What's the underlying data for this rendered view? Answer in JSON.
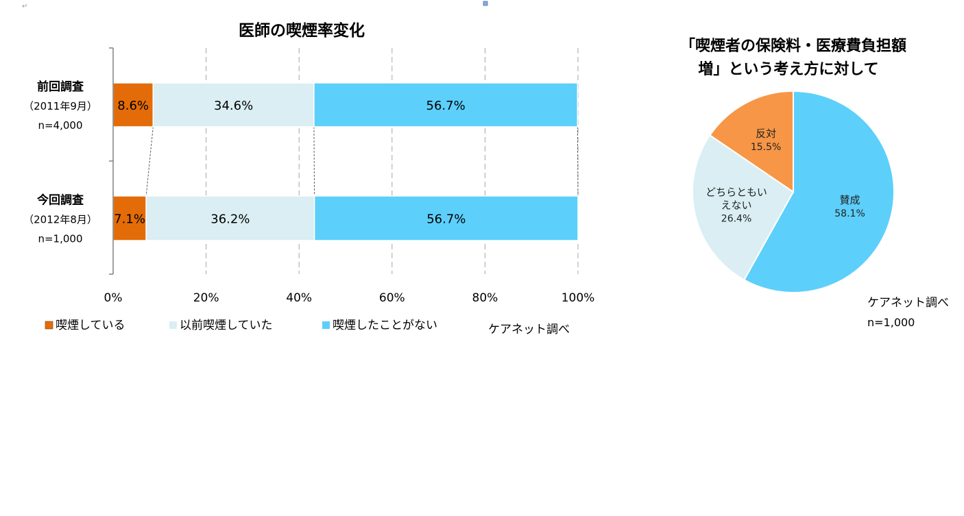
{
  "chart_data": [
    {
      "type": "bar",
      "orientation": "horizontal",
      "stacked": true,
      "title": "医師の喫煙率変化",
      "categories": [
        {
          "lines": [
            "前回調査",
            "（2011年9月）",
            "n=4,000"
          ]
        },
        {
          "lines": [
            "今回調査",
            "（2012年8月）",
            "n=1,000"
          ]
        }
      ],
      "series": [
        {
          "name": "喫煙している",
          "color": "#E36C09",
          "values": [
            8.6,
            7.1
          ],
          "labels": [
            "8.6%",
            "7.1%"
          ]
        },
        {
          "name": "以前喫煙していた",
          "color": "#DAEEF3",
          "values": [
            34.6,
            36.2
          ],
          "labels": [
            "34.6%",
            "36.2%"
          ]
        },
        {
          "name": "喫煙したことがない",
          "color": "#5DCFFB",
          "values": [
            56.7,
            56.7
          ],
          "labels": [
            "56.7%",
            "56.7%"
          ]
        }
      ],
      "xlim": [
        0,
        100
      ],
      "xticks": [
        "0%",
        "20%",
        "40%",
        "60%",
        "80%",
        "100%"
      ],
      "grid": "vertical-dashed",
      "legend": "bottom",
      "source": "ケアネット調べ"
    },
    {
      "type": "pie",
      "title_lines": [
        "「喫煙者の保険料・医療費負担額",
        "増」という考え方に対して"
      ],
      "slices": [
        {
          "label_lines": [
            "賛成"
          ],
          "value": 58.1,
          "value_label": "58.1%",
          "color": "#5DCFFB"
        },
        {
          "label_lines": [
            "どちらともい",
            "えない"
          ],
          "value": 26.4,
          "value_label": "26.4%",
          "color": "#DAEEF3"
        },
        {
          "label_lines": [
            "反対"
          ],
          "value": 15.5,
          "value_label": "15.5%",
          "color": "#F79646"
        }
      ],
      "source": "ケアネット調べ",
      "sample": "n=1,000"
    }
  ]
}
